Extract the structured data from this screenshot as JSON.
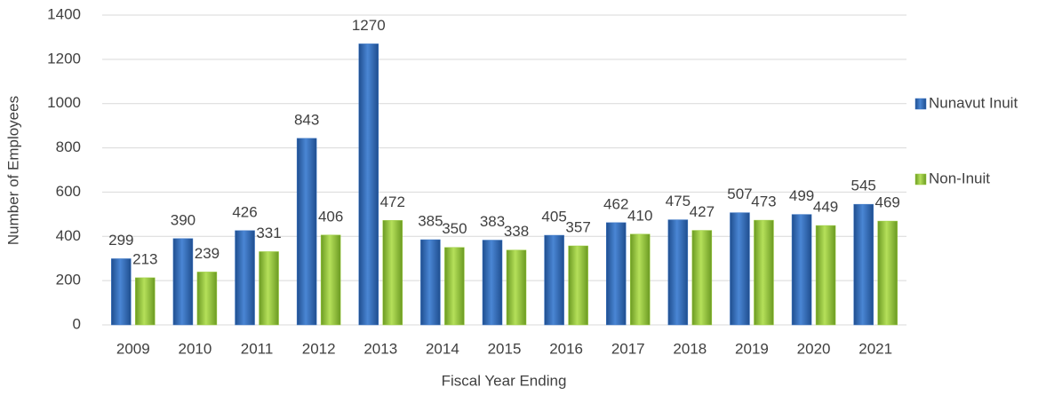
{
  "chart_data": {
    "type": "bar",
    "x_label": "Fiscal Year Ending",
    "y_label": "Number of Employees",
    "categories": [
      "2009",
      "2010",
      "2011",
      "2012",
      "2013",
      "2014",
      "2015",
      "2016",
      "2017",
      "2018",
      "2019",
      "2020",
      "2021"
    ],
    "series": [
      {
        "name": "Nunavut Inuit",
        "color": "#3a75c4",
        "values": [
          299,
          390,
          426,
          843,
          1270,
          385,
          383,
          405,
          462,
          475,
          507,
          499,
          545
        ]
      },
      {
        "name": "Non-Inuit",
        "color": "#9acd3c",
        "values": [
          213,
          239,
          331,
          406,
          472,
          350,
          338,
          357,
          410,
          427,
          473,
          449,
          469
        ]
      }
    ],
    "ylim": [
      0,
      1400
    ],
    "yticks": [
      0,
      200,
      400,
      600,
      800,
      1000,
      1200,
      1400
    ],
    "grid": true,
    "legend": "right"
  }
}
